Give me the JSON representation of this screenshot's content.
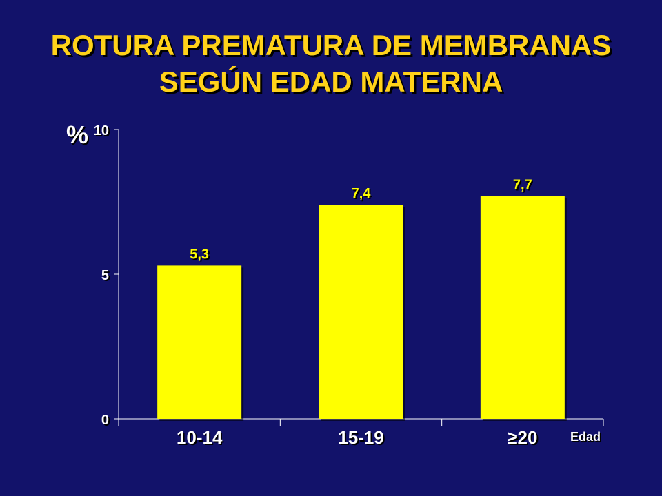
{
  "slide": {
    "title_line1": "ROTURA PREMATURA DE MEMBRANAS",
    "title_line2": "SEGÚN EDAD MATERNA"
  },
  "colors": {
    "background": "#12126a",
    "title": "#ffd21a",
    "bar": "#ffff00",
    "bar_label": "#ffff00",
    "axis_text": "#ffffff"
  },
  "chart_data": {
    "type": "bar",
    "title": "ROTURA PREMATURA DE MEMBRANAS SEGÚN EDAD MATERNA",
    "categories": [
      "10-14",
      "15-19",
      "≥20"
    ],
    "values": [
      5.3,
      7.4,
      7.7
    ],
    "value_labels": [
      "5,3",
      "7,4",
      "7,7"
    ],
    "ylabel": "%",
    "xlabel": "Edad",
    "ylim": [
      0,
      10
    ],
    "yticks": [
      0,
      5,
      10
    ],
    "ytick_labels": [
      "0",
      "5",
      "10"
    ],
    "grid": false,
    "legend": "none"
  }
}
